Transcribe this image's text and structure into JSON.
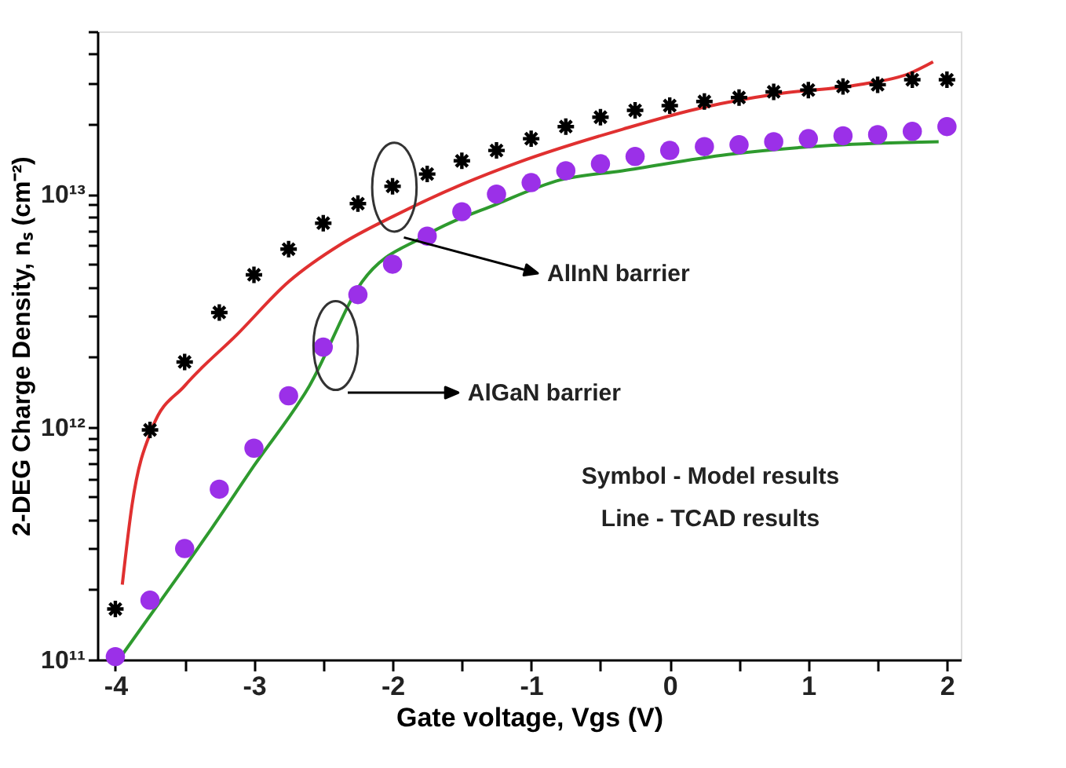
{
  "chart_data": {
    "type": "scatter",
    "xlabel": "Gate voltage, Vgs (V)",
    "ylabel": "2-DEG Charge Density, nₛ (cm⁻²)",
    "log": "y",
    "grid": false,
    "xlim": [
      -4.13,
      2.1
    ],
    "xticks": [
      -4,
      {
        "value": -3.5,
        "label": null
      },
      -3,
      {
        "value": -2.5,
        "label": null
      },
      -2,
      {
        "value": -1.5,
        "label": null
      },
      -1,
      {
        "value": -0.5,
        "label": null
      },
      0,
      {
        "value": 0.5,
        "label": null
      },
      1,
      {
        "value": 1.5,
        "label": null
      },
      2
    ],
    "ylim": [
      100000000000.0,
      50000000000000.0
    ],
    "yticks": [
      {
        "value": 100000000000.0,
        "label": "10¹¹"
      },
      {
        "value": 200000000000.0,
        "label": null
      },
      {
        "value": 300000000000.0,
        "label": null
      },
      {
        "value": 400000000000.0,
        "label": null
      },
      {
        "value": 500000000000.0,
        "label": null
      },
      {
        "value": 600000000000.0,
        "label": null
      },
      {
        "value": 700000000000.0,
        "label": null
      },
      {
        "value": 800000000000.0,
        "label": null
      },
      {
        "value": 900000000000.0,
        "label": null
      },
      {
        "value": 1000000000000.0,
        "label": "10¹²"
      },
      {
        "value": 2000000000000.0,
        "label": null
      },
      {
        "value": 3000000000000.0,
        "label": null
      },
      {
        "value": 4000000000000.0,
        "label": null
      },
      {
        "value": 5000000000000.0,
        "label": null
      },
      {
        "value": 6000000000000.0,
        "label": null
      },
      {
        "value": 7000000000000.0,
        "label": null
      },
      {
        "value": 8000000000000.0,
        "label": null
      },
      {
        "value": 9000000000000.0,
        "label": null
      },
      {
        "value": 10000000000000.0,
        "label": "10¹³"
      },
      {
        "value": 20000000000000.0,
        "label": null
      },
      {
        "value": 30000000000000.0,
        "label": null
      },
      {
        "value": 40000000000000.0,
        "label": null
      },
      {
        "value": 50000000000000.0,
        "label": null
      }
    ],
    "series": [
      {
        "type": "line",
        "color": "#e03030",
        "line_style": "solid",
        "x": [
          -3.95,
          -3.88,
          -3.73,
          -3.5,
          -3.12,
          -2.75,
          -2.37,
          -2.0,
          -1.5,
          -1.09,
          -0.34,
          0.23,
          0.79,
          1.36,
          1.73,
          1.9
        ],
        "values": [
          210000000000.0,
          460000000000.0,
          1000000000000.0,
          1500000000000.0,
          2500000000000.0,
          4200000000000.0,
          6100000000000.0,
          8000000000000.0,
          11000000000000.0,
          13700000000000.0,
          19000000000000.0,
          23500000000000.0,
          27000000000000.0,
          29500000000000.0,
          33000000000000.0,
          37000000000000.0
        ]
      },
      {
        "type": "line",
        "color": "#2e9a2e",
        "line_style": "solid",
        "x": [
          -3.95,
          -3.5,
          -3.3,
          -3.0,
          -2.6,
          -2.22,
          -1.77,
          -1.24,
          -0.79,
          -0.34,
          0.42,
          1.17,
          1.94
        ],
        "values": [
          105000000000.0,
          250000000000.0,
          370000000000.0,
          680000000000.0,
          1500000000000.0,
          4200000000000.0,
          6600000000000.0,
          9100000000000.0,
          11500000000000.0,
          12600000000000.0,
          14800000000000.0,
          16200000000000.0,
          16800000000000.0
        ]
      },
      {
        "color": "#000000",
        "marker": "cross",
        "x": [
          -4,
          -3.75,
          -3.5,
          -3.25,
          -3,
          -2.75,
          -2.5,
          -2.25,
          -2,
          -1.75,
          -1.5,
          -1.25,
          -1,
          -0.75,
          -0.5,
          -0.25,
          0,
          0.25,
          0.5,
          0.75,
          1,
          1.25,
          1.5,
          1.75,
          2
        ],
        "values": [
          165000000000.0,
          970000000000.0,
          1900000000000.0,
          3100000000000.0,
          4500000000000.0,
          5800000000000.0,
          7500000000000.0,
          9100000000000.0,
          10800000000000.0,
          12200000000000.0,
          13900000000000.0,
          15400000000000.0,
          17300000000000.0,
          19500000000000.0,
          21400000000000.0,
          22900000000000.0,
          24000000000000.0,
          25000000000000.0,
          26000000000000.0,
          27500000000000.0,
          28000000000000.0,
          29000000000000.0,
          29500000000000.0,
          31000000000000.0,
          31000000000000.0
        ]
      },
      {
        "color": "#9b30e8",
        "marker": "circle",
        "x": [
          -4,
          -3.75,
          -3.5,
          -3.25,
          -3,
          -2.75,
          -2.5,
          -2.25,
          -2,
          -1.75,
          -1.5,
          -1.25,
          -1,
          -0.75,
          -0.5,
          -0.25,
          0,
          0.25,
          0.5,
          0.75,
          1,
          1.25,
          1.5,
          1.75,
          2
        ],
        "values": [
          103000000000.0,
          180000000000.0,
          300000000000.0,
          540000000000.0,
          810000000000.0,
          1360000000000.0,
          2200000000000.0,
          3700000000000.0,
          5000000000000.0,
          6600000000000.0,
          8400000000000.0,
          10000000000000.0,
          11200000000000.0,
          12600000000000.0,
          13500000000000.0,
          14500000000000.0,
          15400000000000.0,
          16000000000000.0,
          16300000000000.0,
          16800000000000.0,
          17300000000000.0,
          17800000000000.0,
          18000000000000.0,
          18600000000000.0,
          19500000000000.0
        ]
      }
    ],
    "annotations": [
      "AlInN barrier",
      "AlGaN barrier",
      "Symbol - Model results",
      "Line - TCAD results"
    ]
  }
}
